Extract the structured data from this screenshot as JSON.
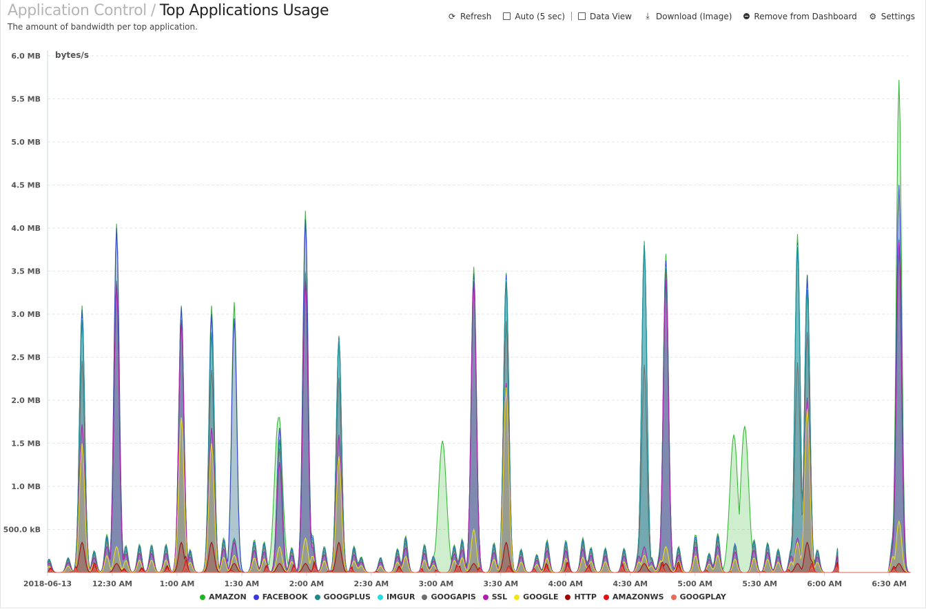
{
  "header": {
    "crumb": "Application Control",
    "separator": "/",
    "title": "Top Applications Usage",
    "subtitle": "The amount of bandwidth per top application."
  },
  "toolbar": {
    "refresh": "Refresh",
    "auto": "Auto (5 sec)",
    "data_view": "Data View",
    "download": "Download (Image)",
    "remove": "Remove from Dashboard",
    "settings": "Settings"
  },
  "chart_data": {
    "type": "area",
    "stacked": true,
    "ylabel": "bytes/s",
    "y_tick_labels": [
      "500.0 kB",
      "1.0 MB",
      "1.5 MB",
      "2.0 MB",
      "2.5 MB",
      "3.0 MB",
      "3.5 MB",
      "4.0 MB",
      "4.5 MB",
      "5.0 MB",
      "5.5 MB",
      "6.0 MB"
    ],
    "ylim": [
      0,
      6.0
    ],
    "y_unit": "MB",
    "x_tick_labels": [
      "2018-06-13",
      "12:30 AM",
      "1:00 AM",
      "1:30 AM",
      "2:00 AM",
      "2:30 AM",
      "3:00 AM",
      "3:30 AM",
      "4:00 AM",
      "4:30 AM",
      "5:00 AM",
      "5:30 AM",
      "6:00 AM",
      "6:30 AM"
    ],
    "x_unit": "minutes since 2018-06-13 00:00",
    "xlim": [
      0,
      400
    ],
    "x_ticks": [
      0,
      30,
      60,
      90,
      120,
      150,
      180,
      210,
      240,
      270,
      300,
      330,
      360,
      390
    ],
    "grid": true,
    "legend_position": "bottom",
    "series": [
      {
        "name": "AMAZON",
        "color": "#22b322"
      },
      {
        "name": "FACEBOOK",
        "color": "#3a3adb"
      },
      {
        "name": "GOOGPLUS",
        "color": "#1f8a8a"
      },
      {
        "name": "IMGUR",
        "color": "#22dde6"
      },
      {
        "name": "GOOGAPIS",
        "color": "#6e6e6e"
      },
      {
        "name": "SSL",
        "color": "#b31cb3"
      },
      {
        "name": "GOOGLE",
        "color": "#f2e51c"
      },
      {
        "name": "HTTP",
        "color": "#a10000"
      },
      {
        "name": "AMAZONWS",
        "color": "#e61010"
      },
      {
        "name": "GOOGPLAY",
        "color": "#ec6a55"
      }
    ],
    "bursts": [
      [
        16,
        3.1,
        3.05,
        2.95,
        1.72,
        1.5
      ],
      [
        32,
        4.05,
        4.0,
        3.4,
        3.35,
        0.3
      ],
      [
        62,
        3.1,
        3.08,
        2.95,
        2.9,
        1.8
      ],
      [
        76,
        3.1,
        3.0,
        2.8,
        1.68,
        1.5
      ],
      [
        86.5,
        3.14,
        2.95,
        0.4,
        0.35,
        0.2
      ],
      [
        107.5,
        1.8,
        1.68,
        1.55,
        1.28,
        0.3
      ],
      [
        119.5,
        4.2,
        4.1,
        3.5,
        3.38,
        0.4
      ],
      [
        135,
        2.75,
        2.73,
        2.7,
        1.6,
        1.35
      ],
      [
        197.5,
        3.55,
        3.47,
        3.4,
        3.38,
        0.5
      ],
      [
        212.5,
        3.48,
        3.46,
        3.4,
        2.2,
        2.15
      ],
      [
        276.5,
        3.85,
        3.82,
        3.8,
        0.3,
        0.2
      ],
      [
        286.5,
        3.7,
        3.62,
        3.55,
        3.4,
        0.3
      ],
      [
        347.5,
        3.93,
        3.83,
        3.8,
        0.4,
        0.35
      ],
      [
        352,
        3.46,
        3.45,
        3.3,
        2.03,
        1.9
      ],
      [
        394.5,
        5.72,
        4.5,
        3.88,
        3.84,
        0.6
      ]
    ],
    "green_plateaus": [
      [
        183,
        1.53
      ],
      [
        318,
        1.6
      ],
      [
        323,
        1.7
      ],
      [
        107,
        1.8
      ]
    ],
    "imgur_bumps": [
      [
        110.5,
        1.08
      ],
      [
        347.5,
        3.8
      ],
      [
        276.5,
        3.85
      ]
    ],
    "baseline": 0.35,
    "gap_ranges": [
      [
        366,
        390
      ]
    ]
  }
}
